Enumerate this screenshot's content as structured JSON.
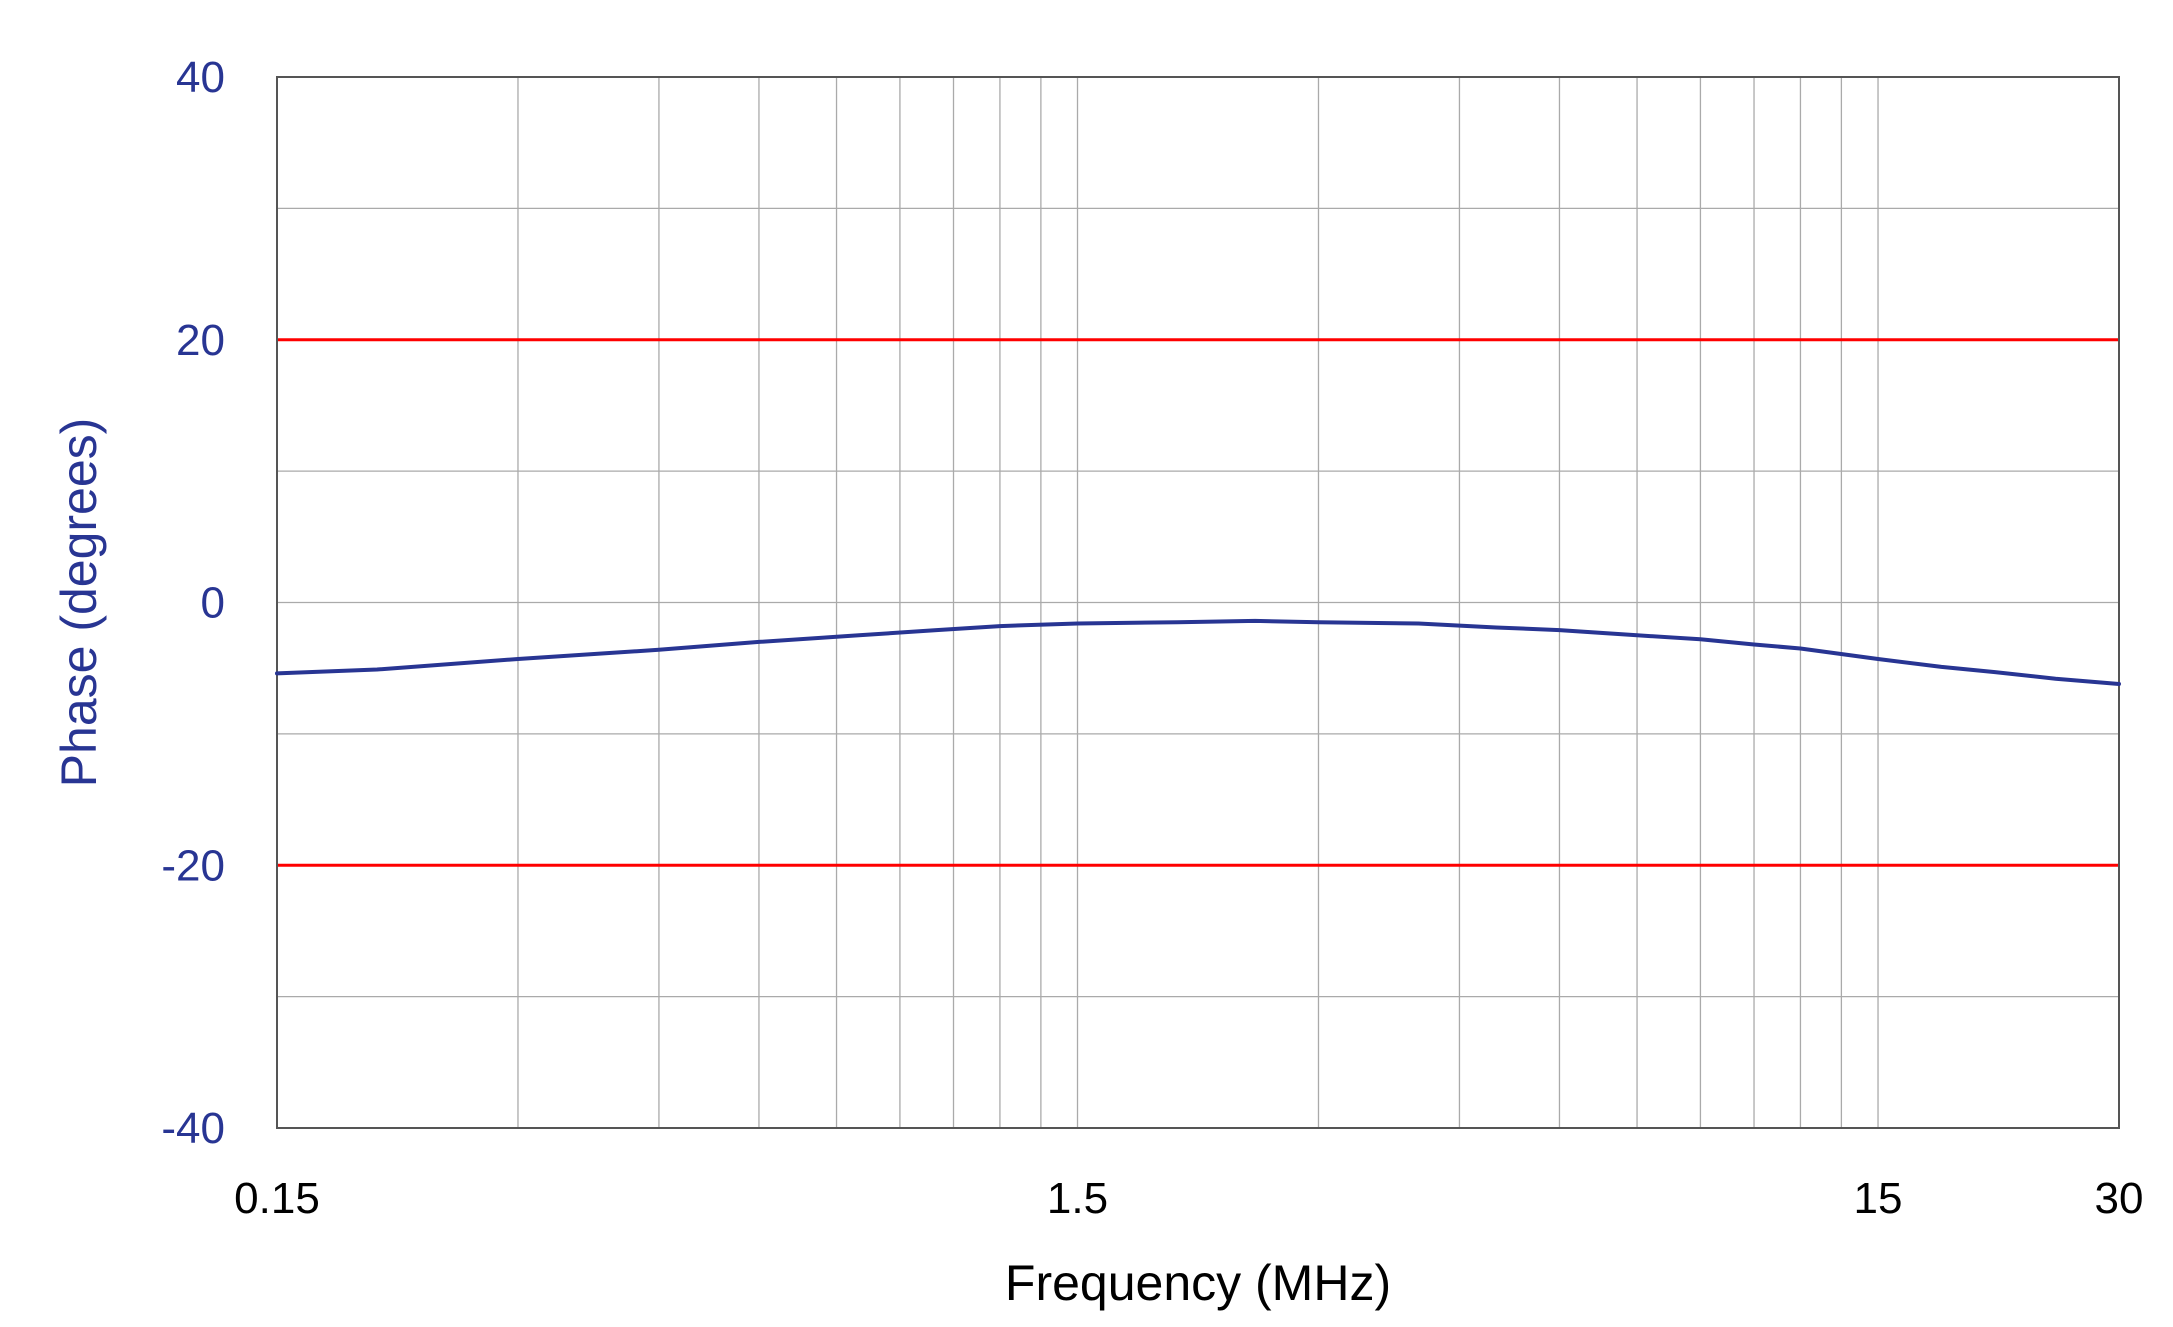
{
  "chart_data": {
    "type": "line",
    "title": "",
    "xlabel": "Frequency (MHz)",
    "ylabel": "Phase (degrees)",
    "x_scale": "log",
    "xlim": [
      0.15,
      30
    ],
    "ylim": [
      -40,
      40
    ],
    "grid": true,
    "x_major_ticks": [
      {
        "value": 0.15,
        "label": "0.15"
      },
      {
        "value": 1.5,
        "label": "1.5"
      },
      {
        "value": 15,
        "label": "15"
      },
      {
        "value": 30,
        "label": "30"
      }
    ],
    "x_minor_gridlines": [
      0.3,
      0.45,
      0.6,
      0.75,
      0.9,
      1.05,
      1.2,
      1.35,
      3,
      4.5,
      6,
      7.5,
      9,
      10.5,
      12,
      13.5
    ],
    "y_ticks": [
      {
        "value": 40,
        "label": "40"
      },
      {
        "value": 20,
        "label": "20"
      },
      {
        "value": 0,
        "label": "0"
      },
      {
        "value": -20,
        "label": "-20"
      },
      {
        "value": -40,
        "label": "-40"
      }
    ],
    "y_gridlines": [
      -30,
      -20,
      -10,
      0,
      10,
      20,
      30
    ],
    "limit_lines": [
      {
        "value": 20,
        "color": "#ff0000"
      },
      {
        "value": -20,
        "color": "#ff0000"
      }
    ],
    "series": [
      {
        "color": "#283593",
        "x": [
          0.15,
          0.2,
          0.3,
          0.45,
          0.6,
          0.8,
          1.0,
          1.2,
          1.5,
          2.0,
          2.5,
          3.0,
          4.0,
          5.0,
          6.0,
          7.5,
          9.0,
          10.5,
          12.0,
          15.0,
          18.0,
          21.0,
          25.0,
          30.0
        ],
        "y": [
          -5.4,
          -5.1,
          -4.3,
          -3.6,
          -3.0,
          -2.5,
          -2.1,
          -1.8,
          -1.6,
          -1.5,
          -1.4,
          -1.5,
          -1.6,
          -1.9,
          -2.1,
          -2.5,
          -2.8,
          -3.2,
          -3.5,
          -4.3,
          -4.9,
          -5.3,
          -5.8,
          -6.2
        ]
      }
    ]
  },
  "colors": {
    "axis_text": "#283593",
    "tick_text_x": "#000000",
    "grid": "#aaaaaa",
    "frame": "#555555",
    "limit": "#ff0000",
    "trace": "#283593"
  }
}
